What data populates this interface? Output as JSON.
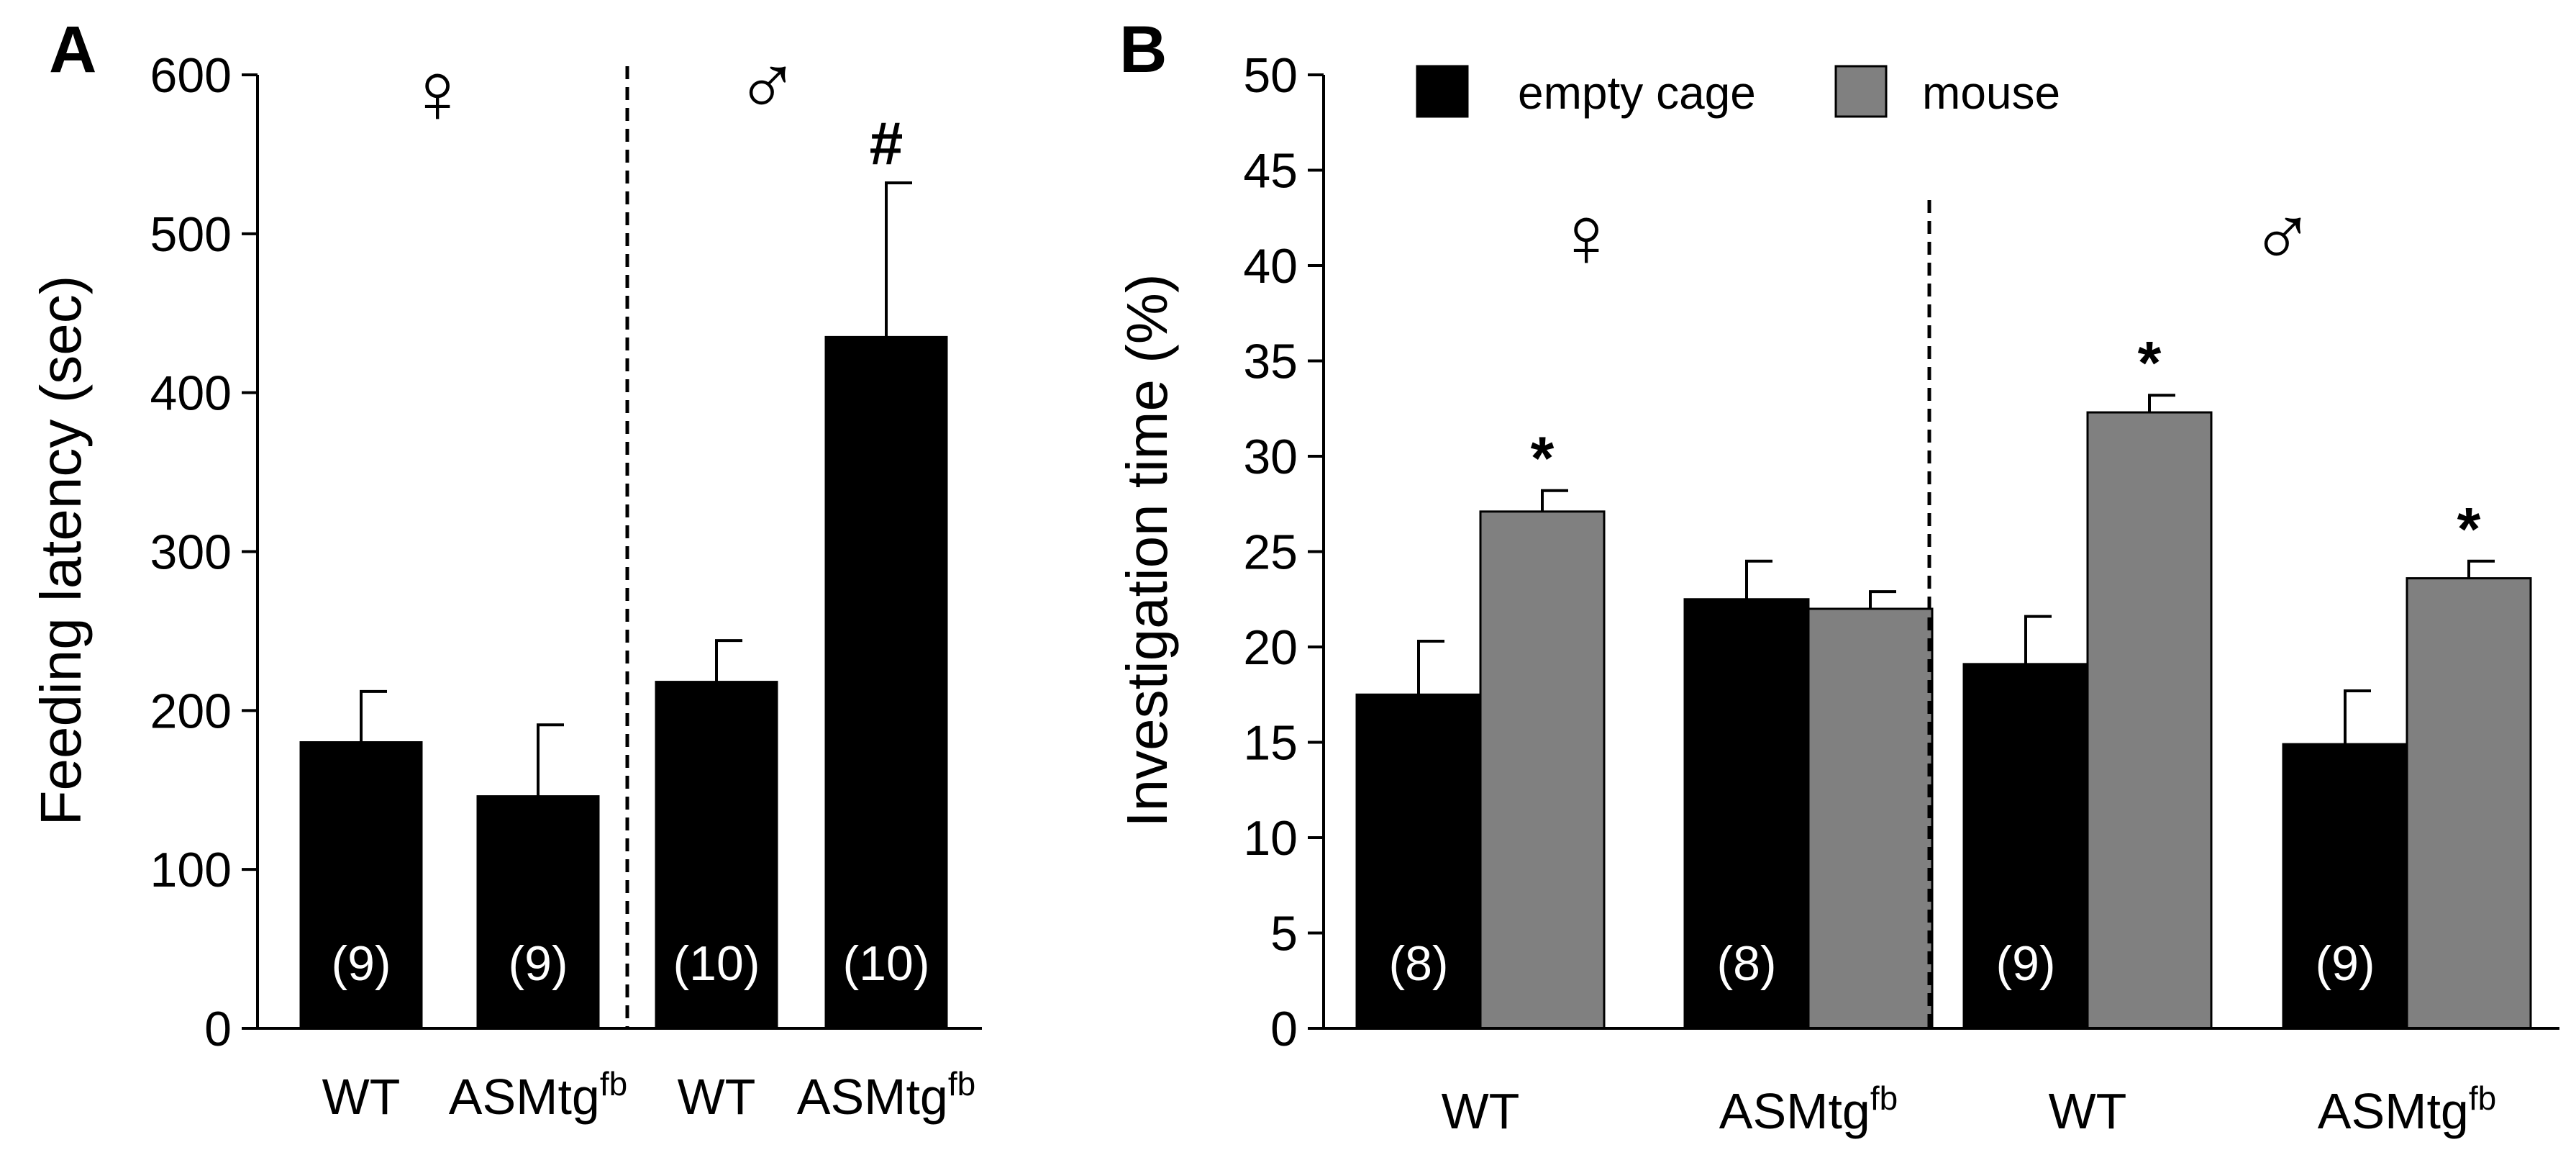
{
  "chart_data": [
    {
      "panel": "A",
      "type": "bar",
      "ylabel": "Feeding latency (sec)",
      "ylim": [
        0,
        600
      ],
      "yticks": [
        0,
        100,
        200,
        300,
        400,
        500,
        600
      ],
      "categories": [
        "WT",
        "ASMtg",
        "WT",
        "ASMtg"
      ],
      "category_superscripts": [
        "",
        "fb",
        "",
        "fb"
      ],
      "group_symbols": [
        "♀",
        "♂"
      ],
      "values": [
        180,
        146,
        218,
        435
      ],
      "errors": [
        32,
        45,
        26,
        97
      ],
      "n_labels": [
        "(9)",
        "(9)",
        "(10)",
        "(10)"
      ],
      "annotations": [
        "",
        "",
        "",
        "#"
      ],
      "colors": [
        "#000000"
      ]
    },
    {
      "panel": "B",
      "type": "bar",
      "ylabel": "Investigation time (%)",
      "ylim": [
        0,
        50
      ],
      "yticks": [
        0,
        5,
        10,
        15,
        20,
        25,
        30,
        35,
        40,
        45,
        50
      ],
      "categories": [
        "WT",
        "ASMtg",
        "WT",
        "ASMtg"
      ],
      "category_superscripts": [
        "",
        "fb",
        "",
        "fb"
      ],
      "group_symbols": [
        "♀",
        "♂"
      ],
      "series": [
        {
          "name": "empty cage",
          "color": "#000000",
          "values": [
            17.5,
            22.5,
            19.1,
            14.9
          ],
          "errors": [
            2.8,
            2.0,
            2.5,
            2.8
          ],
          "n_labels": [
            "(8)",
            "(8)",
            "(9)",
            "(9)"
          ]
        },
        {
          "name": "mouse",
          "color": "#808080",
          "values": [
            27.1,
            22.0,
            32.3,
            23.6
          ],
          "errors": [
            1.1,
            0.9,
            0.9,
            0.9
          ],
          "annotations": [
            "*",
            "",
            "*",
            "*"
          ]
        }
      ]
    }
  ]
}
